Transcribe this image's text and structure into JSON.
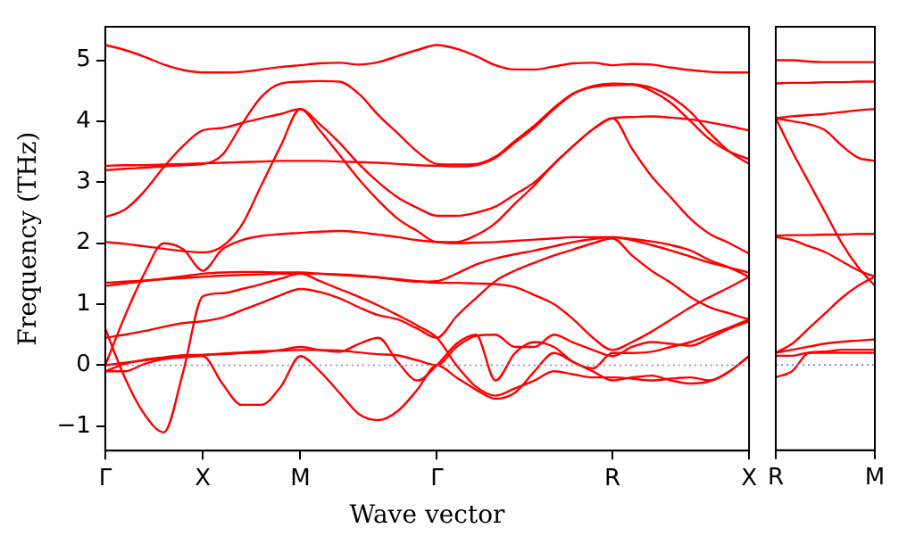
{
  "chart_data": [
    {
      "type": "line",
      "xlabel": "Wave vector",
      "ylabel": "Frequency (THz)",
      "marker": "none",
      "grid": false,
      "legend": false,
      "categories": [
        "Γ",
        null,
        null,
        null,
        null,
        "X",
        null,
        null,
        null,
        null,
        "M",
        null,
        null,
        null,
        null,
        null,
        null,
        "Γ",
        null,
        null,
        null,
        null,
        null,
        null,
        null,
        null,
        "R",
        null,
        null,
        null,
        null,
        null,
        null,
        "X"
      ],
      "ylim": [
        -1.4,
        5.55
      ],
      "yticks": [
        -1,
        0,
        1,
        2,
        3,
        4,
        5
      ],
      "ref_lines": [
        {
          "axis": "y",
          "value": 0,
          "color": "#7b7bd6",
          "line_style": "dotted"
        }
      ],
      "series": [
        {
          "color": "#ff0000",
          "values": [
            5.25,
            5.17,
            5.06,
            4.93,
            4.84,
            4.8,
            4.8,
            4.81,
            4.85,
            4.89,
            4.92,
            4.95,
            4.96,
            4.93,
            4.97,
            5.07,
            5.17,
            5.25,
            5.19,
            5.07,
            4.92,
            4.85,
            4.85,
            4.9,
            4.95,
            4.96,
            4.92,
            4.94,
            4.93,
            4.88,
            4.84,
            4.81,
            4.8,
            4.8
          ]
        },
        {
          "color": "#ff0000",
          "values": [
            3.27,
            3.28,
            3.28,
            3.29,
            3.3,
            3.31,
            3.32,
            3.33,
            3.34,
            3.35,
            3.35,
            3.35,
            3.34,
            3.33,
            3.32,
            3.3,
            3.28,
            3.27,
            3.26,
            3.28,
            3.4,
            3.65,
            3.9,
            4.2,
            4.45,
            4.58,
            4.62,
            4.61,
            4.55,
            4.4,
            4.15,
            3.8,
            3.5,
            3.3
          ]
        },
        {
          "color": "#ff0000",
          "values": [
            3.2,
            3.22,
            3.24,
            3.26,
            3.28,
            3.3,
            3.45,
            3.95,
            4.4,
            4.62,
            4.65,
            4.66,
            4.65,
            4.45,
            4.1,
            3.8,
            3.5,
            3.3,
            3.29,
            3.3,
            3.42,
            3.68,
            3.93,
            4.22,
            4.46,
            4.56,
            4.59,
            4.6,
            4.5,
            4.3,
            4.0,
            3.7,
            3.5,
            3.38
          ]
        },
        {
          "color": "#ff0000",
          "values": [
            2.43,
            2.55,
            2.85,
            3.25,
            3.6,
            3.85,
            3.89,
            3.97,
            4.05,
            4.12,
            4.2,
            3.95,
            3.65,
            3.3,
            3.0,
            2.75,
            2.58,
            2.45,
            2.45,
            2.5,
            2.6,
            2.8,
            3.0,
            3.3,
            3.6,
            3.87,
            4.05,
            4.07,
            4.08,
            4.06,
            4.03,
            3.98,
            3.92,
            3.85
          ]
        },
        {
          "color": "#ff0000",
          "values": [
            2.02,
            1.99,
            1.95,
            1.91,
            1.87,
            1.85,
            1.95,
            2.3,
            2.95,
            3.6,
            4.2,
            3.85,
            3.45,
            3.05,
            2.7,
            2.4,
            2.2,
            2.02,
            2.02,
            2.13,
            2.33,
            2.65,
            2.95,
            3.3,
            3.6,
            3.87,
            4.05,
            3.55,
            3.1,
            2.75,
            2.4,
            2.15,
            2.0,
            1.83
          ]
        },
        {
          "color": "#ff0000",
          "values": [
            0,
            0.8,
            1.5,
            2.0,
            1.9,
            1.55,
            1.9,
            2.05,
            2.12,
            2.15,
            2.17,
            2.19,
            2.2,
            2.18,
            2.14,
            2.1,
            2.05,
            2.02,
            2.0,
            2.01,
            2.02,
            2.04,
            2.06,
            2.08,
            2.1,
            2.1,
            2.1,
            2.07,
            2.03,
            1.97,
            1.88,
            1.72,
            1.6,
            1.45
          ]
        },
        {
          "color": "#ff0000",
          "values": [
            1.35,
            1.37,
            1.39,
            1.41,
            1.43,
            1.45,
            1.47,
            1.48,
            1.49,
            1.5,
            1.5,
            1.5,
            1.49,
            1.47,
            1.44,
            1.41,
            1.38,
            1.35,
            1.35,
            1.34,
            1.33,
            1.28,
            1.15,
            1.0,
            0.75,
            0.45,
            0.25,
            0.38,
            0.55,
            0.75,
            0.95,
            1.12,
            1.28,
            1.45
          ]
        },
        {
          "color": "#ff0000",
          "values": [
            1.3,
            1.34,
            1.38,
            1.42,
            1.46,
            1.5,
            1.52,
            1.53,
            1.53,
            1.52,
            1.52,
            1.5,
            1.48,
            1.46,
            1.44,
            1.4,
            1.37,
            1.38,
            1.5,
            1.65,
            1.75,
            1.82,
            1.88,
            1.95,
            2.02,
            2.07,
            2.1,
            2.05,
            1.97,
            1.88,
            1.78,
            1.68,
            1.6,
            1.52
          ]
        },
        {
          "color": "#ff0000",
          "values": [
            0.45,
            0.5,
            0.56,
            0.63,
            0.69,
            0.72,
            0.78,
            0.9,
            1.02,
            1.15,
            1.25,
            1.2,
            1.1,
            0.95,
            0.82,
            0.75,
            0.6,
            0.45,
            0.8,
            1.1,
            1.38,
            1.55,
            1.68,
            1.8,
            1.9,
            2.0,
            2.08,
            1.8,
            1.55,
            1.35,
            1.12,
            0.95,
            0.85,
            0.75
          ]
        },
        {
          "color": "#ff0000",
          "values": [
            0.6,
            -0.2,
            -0.8,
            -1.1,
            -0.1,
            1.13,
            1.18,
            1.25,
            1.33,
            1.42,
            1.5,
            1.38,
            1.25,
            1.12,
            0.98,
            0.82,
            0.65,
            0.45,
            0.0,
            -0.35,
            -0.5,
            -0.38,
            -0.25,
            -0.1,
            -0.15,
            -0.2,
            -0.2,
            -0.22,
            -0.25,
            -0.22,
            -0.2,
            -0.25,
            -0.1,
            0.15
          ]
        },
        {
          "color": "#ff0000",
          "values": [
            -0.1,
            0.02,
            0.09,
            0.13,
            0.16,
            0.17,
            0.19,
            0.21,
            0.23,
            0.24,
            0.25,
            0.25,
            0.24,
            0.21,
            0.18,
            0.16,
            0.08,
            0,
            0.3,
            0.48,
            0.5,
            0.3,
            0.3,
            0.5,
            0.37,
            0.25,
            0.15,
            0.3,
            0.38,
            0.35,
            0.32,
            0.45,
            0.6,
            0.72
          ]
        },
        {
          "color": "#ff0000",
          "values": [
            -0.1,
            -0.1,
            0.02,
            0.1,
            0.13,
            0.15,
            -0.3,
            -0.65,
            -0.65,
            -0.35,
            0.15,
            -0.1,
            -0.45,
            -0.8,
            -0.9,
            -0.75,
            -0.4,
            0,
            -0.2,
            -0.4,
            -0.55,
            -0.45,
            -0.1,
            0.2,
            0.05,
            -0.1,
            -0.25,
            -0.2,
            -0.17,
            -0.25,
            -0.3,
            -0.26,
            -0.1,
            0.15
          ]
        },
        {
          "color": "#ff0000",
          "values": [
            0,
            0.04,
            0.08,
            0.12,
            0.16,
            0.17,
            0.18,
            0.2,
            0.21,
            0.25,
            0.3,
            0.25,
            0.22,
            0.35,
            0.45,
            0.05,
            -0.25,
            0,
            0.35,
            0.5,
            -0.25,
            0.2,
            0.38,
            0.3,
            0.05,
            -0.05,
            0.2,
            0.2,
            0.22,
            0.3,
            0.38,
            0.5,
            0.62,
            0.75
          ]
        }
      ]
    },
    {
      "type": "line",
      "marker": "none",
      "grid": false,
      "legend": false,
      "tick_labels": "x",
      "categories": [
        "R",
        null,
        null,
        null,
        null,
        null,
        "M"
      ],
      "ylim": [
        -1.4,
        5.55
      ],
      "yticks": [
        -1,
        0,
        1,
        2,
        3,
        4,
        5
      ],
      "ref_lines": [
        {
          "axis": "y",
          "value": 0,
          "color": "#7b7bd6",
          "line_style": "dotted"
        }
      ],
      "series": [
        {
          "color": "#ff0000",
          "values": [
            5.0,
            5.0,
            4.98,
            4.97,
            4.97,
            4.97,
            4.97
          ]
        },
        {
          "color": "#ff0000",
          "values": [
            4.62,
            4.63,
            4.63,
            4.64,
            4.64,
            4.65,
            4.65
          ]
        },
        {
          "color": "#ff0000",
          "values": [
            4.05,
            4.08,
            4.1,
            4.12,
            4.15,
            4.18,
            4.2
          ]
        },
        {
          "color": "#ff0000",
          "values": [
            4.05,
            4.0,
            3.95,
            3.85,
            3.6,
            3.4,
            3.35
          ]
        },
        {
          "color": "#ff0000",
          "values": [
            4.05,
            3.5,
            3.0,
            2.5,
            2.0,
            1.6,
            1.3
          ]
        },
        {
          "color": "#ff0000",
          "values": [
            2.12,
            2.13,
            2.13,
            2.14,
            2.14,
            2.15,
            2.15
          ]
        },
        {
          "color": "#ff0000",
          "values": [
            2.1,
            2.05,
            1.95,
            1.85,
            1.7,
            1.55,
            1.45
          ]
        },
        {
          "color": "#ff0000",
          "values": [
            0.2,
            0.35,
            0.6,
            0.85,
            1.1,
            1.3,
            1.45
          ]
        },
        {
          "color": "#ff0000",
          "values": [
            0.2,
            0.25,
            0.3,
            0.35,
            0.38,
            0.4,
            0.42
          ]
        },
        {
          "color": "#ff0000",
          "values": [
            -0.2,
            -0.1,
            0.2,
            0.22,
            0.25,
            0.25,
            0.25
          ]
        },
        {
          "color": "#ff0000",
          "values": [
            0.15,
            0.15,
            0.2,
            0.2,
            0.2,
            0.2,
            0.2
          ]
        }
      ]
    }
  ]
}
